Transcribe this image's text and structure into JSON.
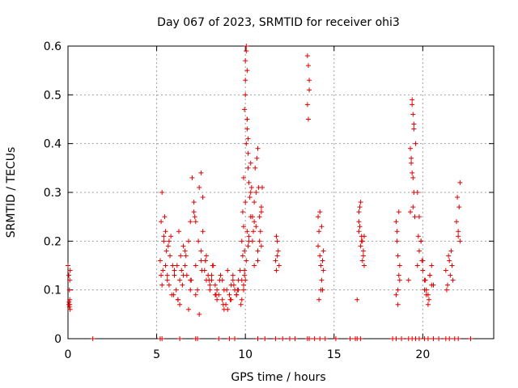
{
  "chart_data": {
    "type": "scatter",
    "title": "Day 067 of 2023, SRMTID for receiver ohi3",
    "xlabel": "GPS time / hours",
    "ylabel": "SRMTID / TECUs",
    "xlim": [
      0,
      24
    ],
    "ylim": [
      0,
      0.6
    ],
    "xticks": [
      "0",
      "5",
      "10",
      "15",
      "20"
    ],
    "xtick_values": [
      0,
      5,
      10,
      15,
      20
    ],
    "yticks": [
      "0",
      "0.1",
      "0.2",
      "0.3",
      "0.4",
      "0.5",
      "0.6"
    ],
    "ytick_values": [
      0,
      0.1,
      0.2,
      0.3,
      0.4,
      0.5,
      0.6
    ],
    "grid": true,
    "marker": "+",
    "color": "#e00000",
    "series": [
      {
        "name": "SRMTID",
        "x": [
          0.0,
          0.05,
          0.08,
          0.1,
          0.12,
          0.05,
          0.08,
          0.1,
          0.06,
          0.12,
          0.1,
          5.2,
          5.3,
          5.35,
          5.4,
          5.5,
          5.55,
          5.6,
          5.7,
          5.75,
          5.8,
          5.85,
          5.9,
          6.0,
          6.1,
          6.2,
          6.3,
          6.35,
          6.4,
          6.5,
          6.6,
          6.7,
          6.8,
          6.9,
          7.0,
          7.1,
          7.2,
          7.3,
          7.4,
          7.5,
          7.6,
          7.7,
          7.8,
          7.9,
          8.0,
          8.1,
          8.2,
          8.3,
          8.4,
          8.5,
          8.6,
          8.7,
          8.8,
          8.9,
          9.0,
          9.1,
          9.2,
          9.3,
          9.4,
          9.5,
          9.6,
          9.7,
          9.8,
          9.9,
          5.25,
          5.45,
          5.65,
          5.95,
          6.15,
          6.45,
          6.65,
          6.95,
          7.15,
          7.35,
          7.55,
          7.75,
          7.95,
          8.15,
          8.35,
          8.55,
          8.75,
          8.95,
          9.15,
          9.35,
          9.55,
          9.75,
          9.95,
          5.3,
          5.5,
          5.7,
          6.0,
          6.3,
          6.6,
          6.9,
          7.2,
          7.5,
          7.8,
          8.1,
          8.4,
          8.7,
          9.0,
          9.3,
          9.6,
          5.25,
          5.4,
          5.6,
          6.25,
          6.9,
          7.1,
          7.5,
          7.6,
          7.75,
          6.2,
          6.5,
          6.8,
          7.2,
          7.4,
          8.0,
          8.3,
          8.8,
          9.2,
          9.5,
          9.8,
          9.8,
          9.85,
          9.9,
          9.95,
          10.0,
          10.0,
          10.05,
          10.1,
          10.1,
          10.15,
          10.2,
          10.25,
          10.3,
          10.35,
          10.4,
          10.45,
          10.5,
          10.55,
          10.6,
          10.65,
          10.7,
          10.75,
          10.8,
          10.85,
          10.9,
          10.95,
          9.85,
          9.9,
          9.95,
          10.0,
          10.05,
          10.1,
          10.15,
          10.2,
          10.3,
          10.4,
          10.5,
          10.6,
          10.7,
          10.8,
          10.9,
          9.9,
          9.95,
          10.0,
          10.05,
          10.1,
          10.15,
          10.2,
          10.0,
          10.05,
          10.1,
          10.15,
          10.3,
          10.5,
          10.7,
          10.9,
          11.7,
          11.75,
          11.8,
          11.85,
          11.9,
          11.75,
          11.8,
          13.5,
          13.55,
          13.6,
          13.5,
          13.55,
          13.6,
          14.1,
          14.15,
          14.2,
          14.25,
          14.3,
          14.35,
          14.4,
          14.1,
          14.2,
          14.3,
          14.4,
          14.15,
          14.25,
          14.35,
          16.3,
          16.4,
          16.45,
          16.5,
          16.55,
          16.6,
          16.65,
          16.7,
          16.4,
          16.5,
          16.6,
          16.7,
          16.45,
          16.55,
          16.65,
          16.4,
          18.5,
          18.55,
          18.6,
          18.65,
          18.7,
          18.5,
          18.6,
          18.7,
          18.55,
          18.65,
          18.6,
          19.2,
          19.3,
          19.4,
          19.5,
          19.6,
          19.7,
          19.8,
          19.9,
          20.0,
          20.1,
          20.2,
          20.3,
          20.4,
          20.5,
          20.6,
          19.3,
          19.35,
          19.4,
          19.45,
          19.5,
          19.4,
          19.45,
          19.5,
          19.35,
          19.45,
          19.55,
          19.7,
          19.8,
          19.9,
          20.0,
          20.1,
          20.2,
          20.3,
          20.4,
          20.5,
          19.75,
          19.95,
          20.15,
          20.35,
          21.3,
          21.4,
          21.5,
          21.6,
          21.7,
          21.35,
          21.45,
          21.55,
          21.65,
          21.9,
          22.0,
          22.1,
          21.95,
          22.05,
          22.0,
          22.1,
          1.4,
          5.2,
          5.3,
          6.3,
          7.2,
          7.3,
          8.5,
          9.1,
          9.4,
          10.7,
          11.1,
          11.7,
          12.1,
          12.5,
          12.8,
          13.5,
          13.6,
          13.9,
          14.2,
          14.5,
          15.1,
          15.9,
          16.2,
          16.3,
          16.5,
          18.3,
          18.5,
          18.8,
          19.2,
          19.4,
          19.6,
          19.8,
          20.1,
          20.3,
          20.6,
          20.9,
          21.3,
          21.5,
          21.8,
          22.0,
          22.7
        ],
        "y": [
          0.15,
          0.13,
          0.1,
          0.12,
          0.14,
          0.07,
          0.065,
          0.07,
          0.075,
          0.06,
          0.08,
          0.16,
          0.3,
          0.14,
          0.2,
          0.22,
          0.18,
          0.12,
          0.11,
          0.17,
          0.21,
          0.09,
          0.15,
          0.13,
          0.1,
          0.08,
          0.12,
          0.17,
          0.14,
          0.19,
          0.15,
          0.13,
          0.2,
          0.12,
          0.33,
          0.28,
          0.24,
          0.1,
          0.31,
          0.34,
          0.22,
          0.14,
          0.17,
          0.13,
          0.1,
          0.12,
          0.15,
          0.11,
          0.08,
          0.09,
          0.13,
          0.12,
          0.1,
          0.07,
          0.06,
          0.09,
          0.11,
          0.13,
          0.1,
          0.09,
          0.12,
          0.14,
          0.08,
          0.11,
          0.13,
          0.25,
          0.19,
          0.09,
          0.15,
          0.11,
          0.17,
          0.12,
          0.25,
          0.2,
          0.14,
          0.16,
          0.12,
          0.15,
          0.09,
          0.12,
          0.07,
          0.1,
          0.08,
          0.11,
          0.1,
          0.07,
          0.13,
          0.11,
          0.15,
          0.2,
          0.14,
          0.07,
          0.18,
          0.1,
          0.15,
          0.16,
          0.12,
          0.13,
          0.1,
          0.08,
          0.14,
          0.12,
          0.1,
          0.24,
          0.21,
          0.13,
          0.22,
          0.24,
          0.26,
          0.18,
          0.29,
          0.16,
          0.08,
          0.13,
          0.06,
          0.09,
          0.05,
          0.11,
          0.09,
          0.06,
          0.08,
          0.09,
          0.12,
          0.2,
          0.26,
          0.33,
          0.47,
          0.53,
          0.57,
          0.59,
          0.55,
          0.45,
          0.38,
          0.32,
          0.29,
          0.36,
          0.31,
          0.25,
          0.22,
          0.28,
          0.35,
          0.3,
          0.37,
          0.39,
          0.31,
          0.25,
          0.22,
          0.27,
          0.31,
          0.17,
          0.23,
          0.18,
          0.28,
          0.4,
          0.43,
          0.35,
          0.21,
          0.25,
          0.2,
          0.24,
          0.23,
          0.18,
          0.2,
          0.26,
          0.1,
          0.14,
          0.12,
          0.16,
          0.22,
          0.19,
          0.2,
          0.5,
          0.6,
          0.45,
          0.41,
          0.3,
          0.15,
          0.16,
          0.19,
          0.16,
          0.14,
          0.2,
          0.18,
          0.15,
          0.21,
          0.17,
          0.58,
          0.56,
          0.51,
          0.48,
          0.45,
          0.53,
          0.25,
          0.22,
          0.17,
          0.15,
          0.12,
          0.1,
          0.14,
          0.19,
          0.26,
          0.23,
          0.18,
          0.08,
          0.1,
          0.16,
          0.08,
          0.24,
          0.27,
          0.28,
          0.21,
          0.2,
          0.18,
          0.15,
          0.22,
          0.19,
          0.16,
          0.21,
          0.23,
          0.2,
          0.17,
          0.26,
          0.24,
          0.2,
          0.17,
          0.13,
          0.12,
          0.09,
          0.1,
          0.15,
          0.22,
          0.26,
          0.07,
          0.12,
          0.26,
          0.49,
          0.44,
          0.4,
          0.3,
          0.25,
          0.2,
          0.16,
          0.12,
          0.1,
          0.09,
          0.13,
          0.15,
          0.11,
          0.39,
          0.37,
          0.34,
          0.33,
          0.3,
          0.48,
          0.46,
          0.43,
          0.36,
          0.27,
          0.25,
          0.15,
          0.18,
          0.2,
          0.14,
          0.1,
          0.09,
          0.07,
          0.13,
          0.11,
          0.21,
          0.16,
          0.12,
          0.08,
          0.14,
          0.11,
          0.16,
          0.18,
          0.12,
          0.1,
          0.17,
          0.13,
          0.15,
          0.24,
          0.22,
          0.32,
          0.29,
          0.27,
          0.21,
          0.2,
          0,
          0,
          0,
          0,
          0,
          0,
          0,
          0,
          0,
          0,
          0,
          0,
          0,
          0,
          0,
          0,
          0,
          0,
          0,
          0,
          0,
          0,
          0,
          0,
          0,
          0,
          0,
          0,
          0,
          0,
          0,
          0,
          0,
          0,
          0,
          0,
          0,
          0,
          0,
          0,
          0
        ]
      }
    ]
  }
}
